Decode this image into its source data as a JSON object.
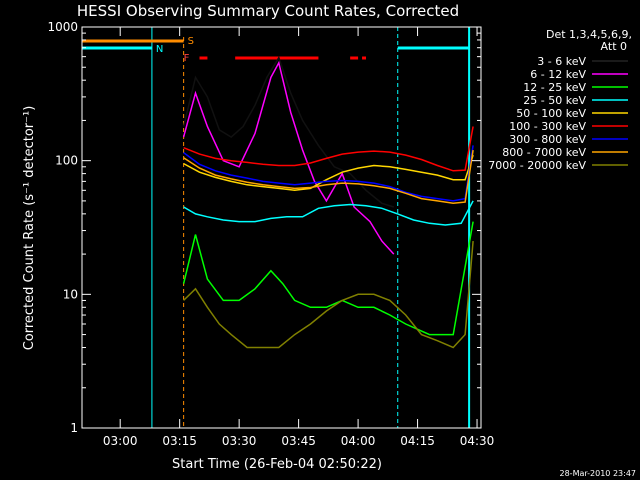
{
  "chart_data": {
    "type": "line",
    "title": "HESSI Observing Summary Count Rates, Corrected",
    "xlabel": "Start Time (26-Feb-04 02:50:22)",
    "ylabel": "Corrected Count Rate (s⁻¹ detector⁻¹)",
    "ylog": true,
    "ylim": [
      1,
      1000
    ],
    "xlim": [
      "02:50:22",
      "04:31:00"
    ],
    "x_ticks": [
      "03:00",
      "03:15",
      "03:30",
      "03:45",
      "04:00",
      "04:15",
      "04:30"
    ],
    "y_ticks": [
      "1",
      "10",
      "100",
      "1000"
    ],
    "legend_header": [
      "Det 1,3,4,5,6,9,",
      "Att 0"
    ],
    "footer_timestamp": "28-Mar-2010 23:47",
    "flag_labels": {
      "saa": "S",
      "night": "N",
      "flare": "F"
    },
    "flare_bars": [
      [
        "03:20",
        "03:22"
      ],
      [
        "03:29",
        "03:50"
      ],
      [
        "03:58",
        "04:00"
      ],
      [
        "04:01",
        "04:02"
      ]
    ],
    "data_gaps": [
      [
        "02:50:22",
        "03:08"
      ],
      [
        "04:10",
        "04:28"
      ]
    ],
    "series": [
      {
        "name": "3 - 6 keV",
        "color": "#000000",
        "points": [
          [
            "03:16",
            180
          ],
          [
            "03:19",
            420
          ],
          [
            "03:22",
            300
          ],
          [
            "03:25",
            170
          ],
          [
            "03:28",
            150
          ],
          [
            "03:31",
            180
          ],
          [
            "03:34",
            260
          ],
          [
            "03:37",
            420
          ],
          [
            "03:40",
            590
          ],
          [
            "03:43",
            320
          ],
          [
            "03:46",
            200
          ],
          [
            "03:50",
            130
          ],
          [
            "03:54",
            90
          ],
          [
            "03:58",
            80
          ],
          [
            "04:02",
            60
          ],
          [
            "04:06",
            48
          ],
          [
            "04:09",
            45
          ]
        ]
      },
      {
        "name": "6 - 12 keV",
        "color": "#ff00ff",
        "points": [
          [
            "03:16",
            150
          ],
          [
            "03:19",
            320
          ],
          [
            "03:22",
            180
          ],
          [
            "03:26",
            100
          ],
          [
            "03:30",
            90
          ],
          [
            "03:34",
            160
          ],
          [
            "03:38",
            420
          ],
          [
            "03:40",
            540
          ],
          [
            "03:43",
            230
          ],
          [
            "03:46",
            120
          ],
          [
            "03:49",
            70
          ],
          [
            "03:52",
            50
          ],
          [
            "03:56",
            80
          ],
          [
            "03:59",
            45
          ],
          [
            "04:03",
            35
          ],
          [
            "04:06",
            25
          ],
          [
            "04:09",
            20
          ]
        ]
      },
      {
        "name": "12 - 25 keV",
        "color": "#00ff00",
        "points": [
          [
            "03:16",
            12
          ],
          [
            "03:19",
            28
          ],
          [
            "03:22",
            13
          ],
          [
            "03:26",
            9
          ],
          [
            "03:30",
            9
          ],
          [
            "03:34",
            11
          ],
          [
            "03:38",
            15
          ],
          [
            "03:41",
            12
          ],
          [
            "03:44",
            9
          ],
          [
            "03:48",
            8
          ],
          [
            "03:52",
            8
          ],
          [
            "03:56",
            9
          ],
          [
            "04:00",
            8
          ],
          [
            "04:04",
            8
          ],
          [
            "04:08",
            7
          ],
          [
            "04:12",
            6
          ],
          [
            "04:18",
            5
          ],
          [
            "04:24",
            5
          ],
          [
            "04:29",
            35
          ]
        ]
      },
      {
        "name": "25 - 50 keV",
        "color": "#00ffff",
        "points": [
          [
            "03:16",
            45
          ],
          [
            "03:19",
            40
          ],
          [
            "03:22",
            38
          ],
          [
            "03:26",
            36
          ],
          [
            "03:30",
            35
          ],
          [
            "03:34",
            35
          ],
          [
            "03:38",
            37
          ],
          [
            "03:42",
            38
          ],
          [
            "03:46",
            38
          ],
          [
            "03:50",
            44
          ],
          [
            "03:54",
            46
          ],
          [
            "03:58",
            47
          ],
          [
            "04:02",
            46
          ],
          [
            "04:06",
            44
          ],
          [
            "04:10",
            40
          ],
          [
            "04:14",
            36
          ],
          [
            "04:18",
            34
          ],
          [
            "04:22",
            33
          ],
          [
            "04:26",
            34
          ],
          [
            "04:29",
            50
          ]
        ]
      },
      {
        "name": "50 - 100 keV",
        "color": "#ffd700",
        "points": [
          [
            "03:16",
            95
          ],
          [
            "03:20",
            82
          ],
          [
            "03:24",
            75
          ],
          [
            "03:28",
            70
          ],
          [
            "03:32",
            66
          ],
          [
            "03:36",
            64
          ],
          [
            "03:40",
            62
          ],
          [
            "03:44",
            60
          ],
          [
            "03:48",
            62
          ],
          [
            "03:52",
            72
          ],
          [
            "03:56",
            82
          ],
          [
            "04:00",
            88
          ],
          [
            "04:04",
            92
          ],
          [
            "04:08",
            90
          ],
          [
            "04:12",
            86
          ],
          [
            "04:16",
            82
          ],
          [
            "04:20",
            78
          ],
          [
            "04:24",
            72
          ],
          [
            "04:27",
            72
          ],
          [
            "04:29",
            110
          ]
        ]
      },
      {
        "name": "100 - 300 keV",
        "color": "#ff0000",
        "points": [
          [
            "03:16",
            125
          ],
          [
            "03:20",
            112
          ],
          [
            "03:24",
            104
          ],
          [
            "03:28",
            100
          ],
          [
            "03:32",
            97
          ],
          [
            "03:36",
            94
          ],
          [
            "03:40",
            92
          ],
          [
            "03:44",
            92
          ],
          [
            "03:48",
            96
          ],
          [
            "03:52",
            104
          ],
          [
            "03:56",
            112
          ],
          [
            "04:00",
            116
          ],
          [
            "04:04",
            118
          ],
          [
            "04:08",
            116
          ],
          [
            "04:12",
            110
          ],
          [
            "04:16",
            102
          ],
          [
            "04:20",
            92
          ],
          [
            "04:24",
            84
          ],
          [
            "04:27",
            85
          ],
          [
            "04:29",
            180
          ]
        ]
      },
      {
        "name": "300 - 800 keV",
        "color": "#0000ff",
        "points": [
          [
            "03:16",
            115
          ],
          [
            "03:20",
            94
          ],
          [
            "03:24",
            84
          ],
          [
            "03:28",
            78
          ],
          [
            "03:32",
            74
          ],
          [
            "03:36",
            70
          ],
          [
            "03:40",
            68
          ],
          [
            "03:44",
            66
          ],
          [
            "03:48",
            68
          ],
          [
            "03:52",
            70
          ],
          [
            "03:56",
            71
          ],
          [
            "04:00",
            70
          ],
          [
            "04:04",
            68
          ],
          [
            "04:08",
            64
          ],
          [
            "04:12",
            58
          ],
          [
            "04:16",
            54
          ],
          [
            "04:20",
            52
          ],
          [
            "04:24",
            50
          ],
          [
            "04:27",
            52
          ],
          [
            "04:29",
            130
          ]
        ]
      },
      {
        "name": "800 - 7000 keV",
        "color": "#ffa500",
        "points": [
          [
            "03:16",
            105
          ],
          [
            "03:20",
            88
          ],
          [
            "03:24",
            78
          ],
          [
            "03:28",
            73
          ],
          [
            "03:32",
            69
          ],
          [
            "03:36",
            66
          ],
          [
            "03:40",
            64
          ],
          [
            "03:44",
            62
          ],
          [
            "03:48",
            63
          ],
          [
            "03:52",
            66
          ],
          [
            "03:56",
            68
          ],
          [
            "04:00",
            67
          ],
          [
            "04:04",
            65
          ],
          [
            "04:08",
            62
          ],
          [
            "04:12",
            57
          ],
          [
            "04:16",
            52
          ],
          [
            "04:20",
            50
          ],
          [
            "04:24",
            48
          ],
          [
            "04:27",
            49
          ],
          [
            "04:29",
            120
          ]
        ]
      },
      {
        "name": "7000 - 20000 keV",
        "color": "#808000",
        "points": [
          [
            "03:16",
            9
          ],
          [
            "03:19",
            11
          ],
          [
            "03:22",
            8
          ],
          [
            "03:25",
            6
          ],
          [
            "03:28",
            5
          ],
          [
            "03:32",
            4
          ],
          [
            "03:36",
            4
          ],
          [
            "03:40",
            4
          ],
          [
            "03:44",
            5
          ],
          [
            "03:48",
            6
          ],
          [
            "03:52",
            7.5
          ],
          [
            "03:56",
            9
          ],
          [
            "04:00",
            10
          ],
          [
            "04:04",
            10
          ],
          [
            "04:08",
            9
          ],
          [
            "04:12",
            7
          ],
          [
            "04:16",
            5
          ],
          [
            "04:20",
            4.5
          ],
          [
            "04:24",
            4
          ],
          [
            "04:27",
            5
          ],
          [
            "04:29",
            25
          ]
        ]
      }
    ]
  }
}
